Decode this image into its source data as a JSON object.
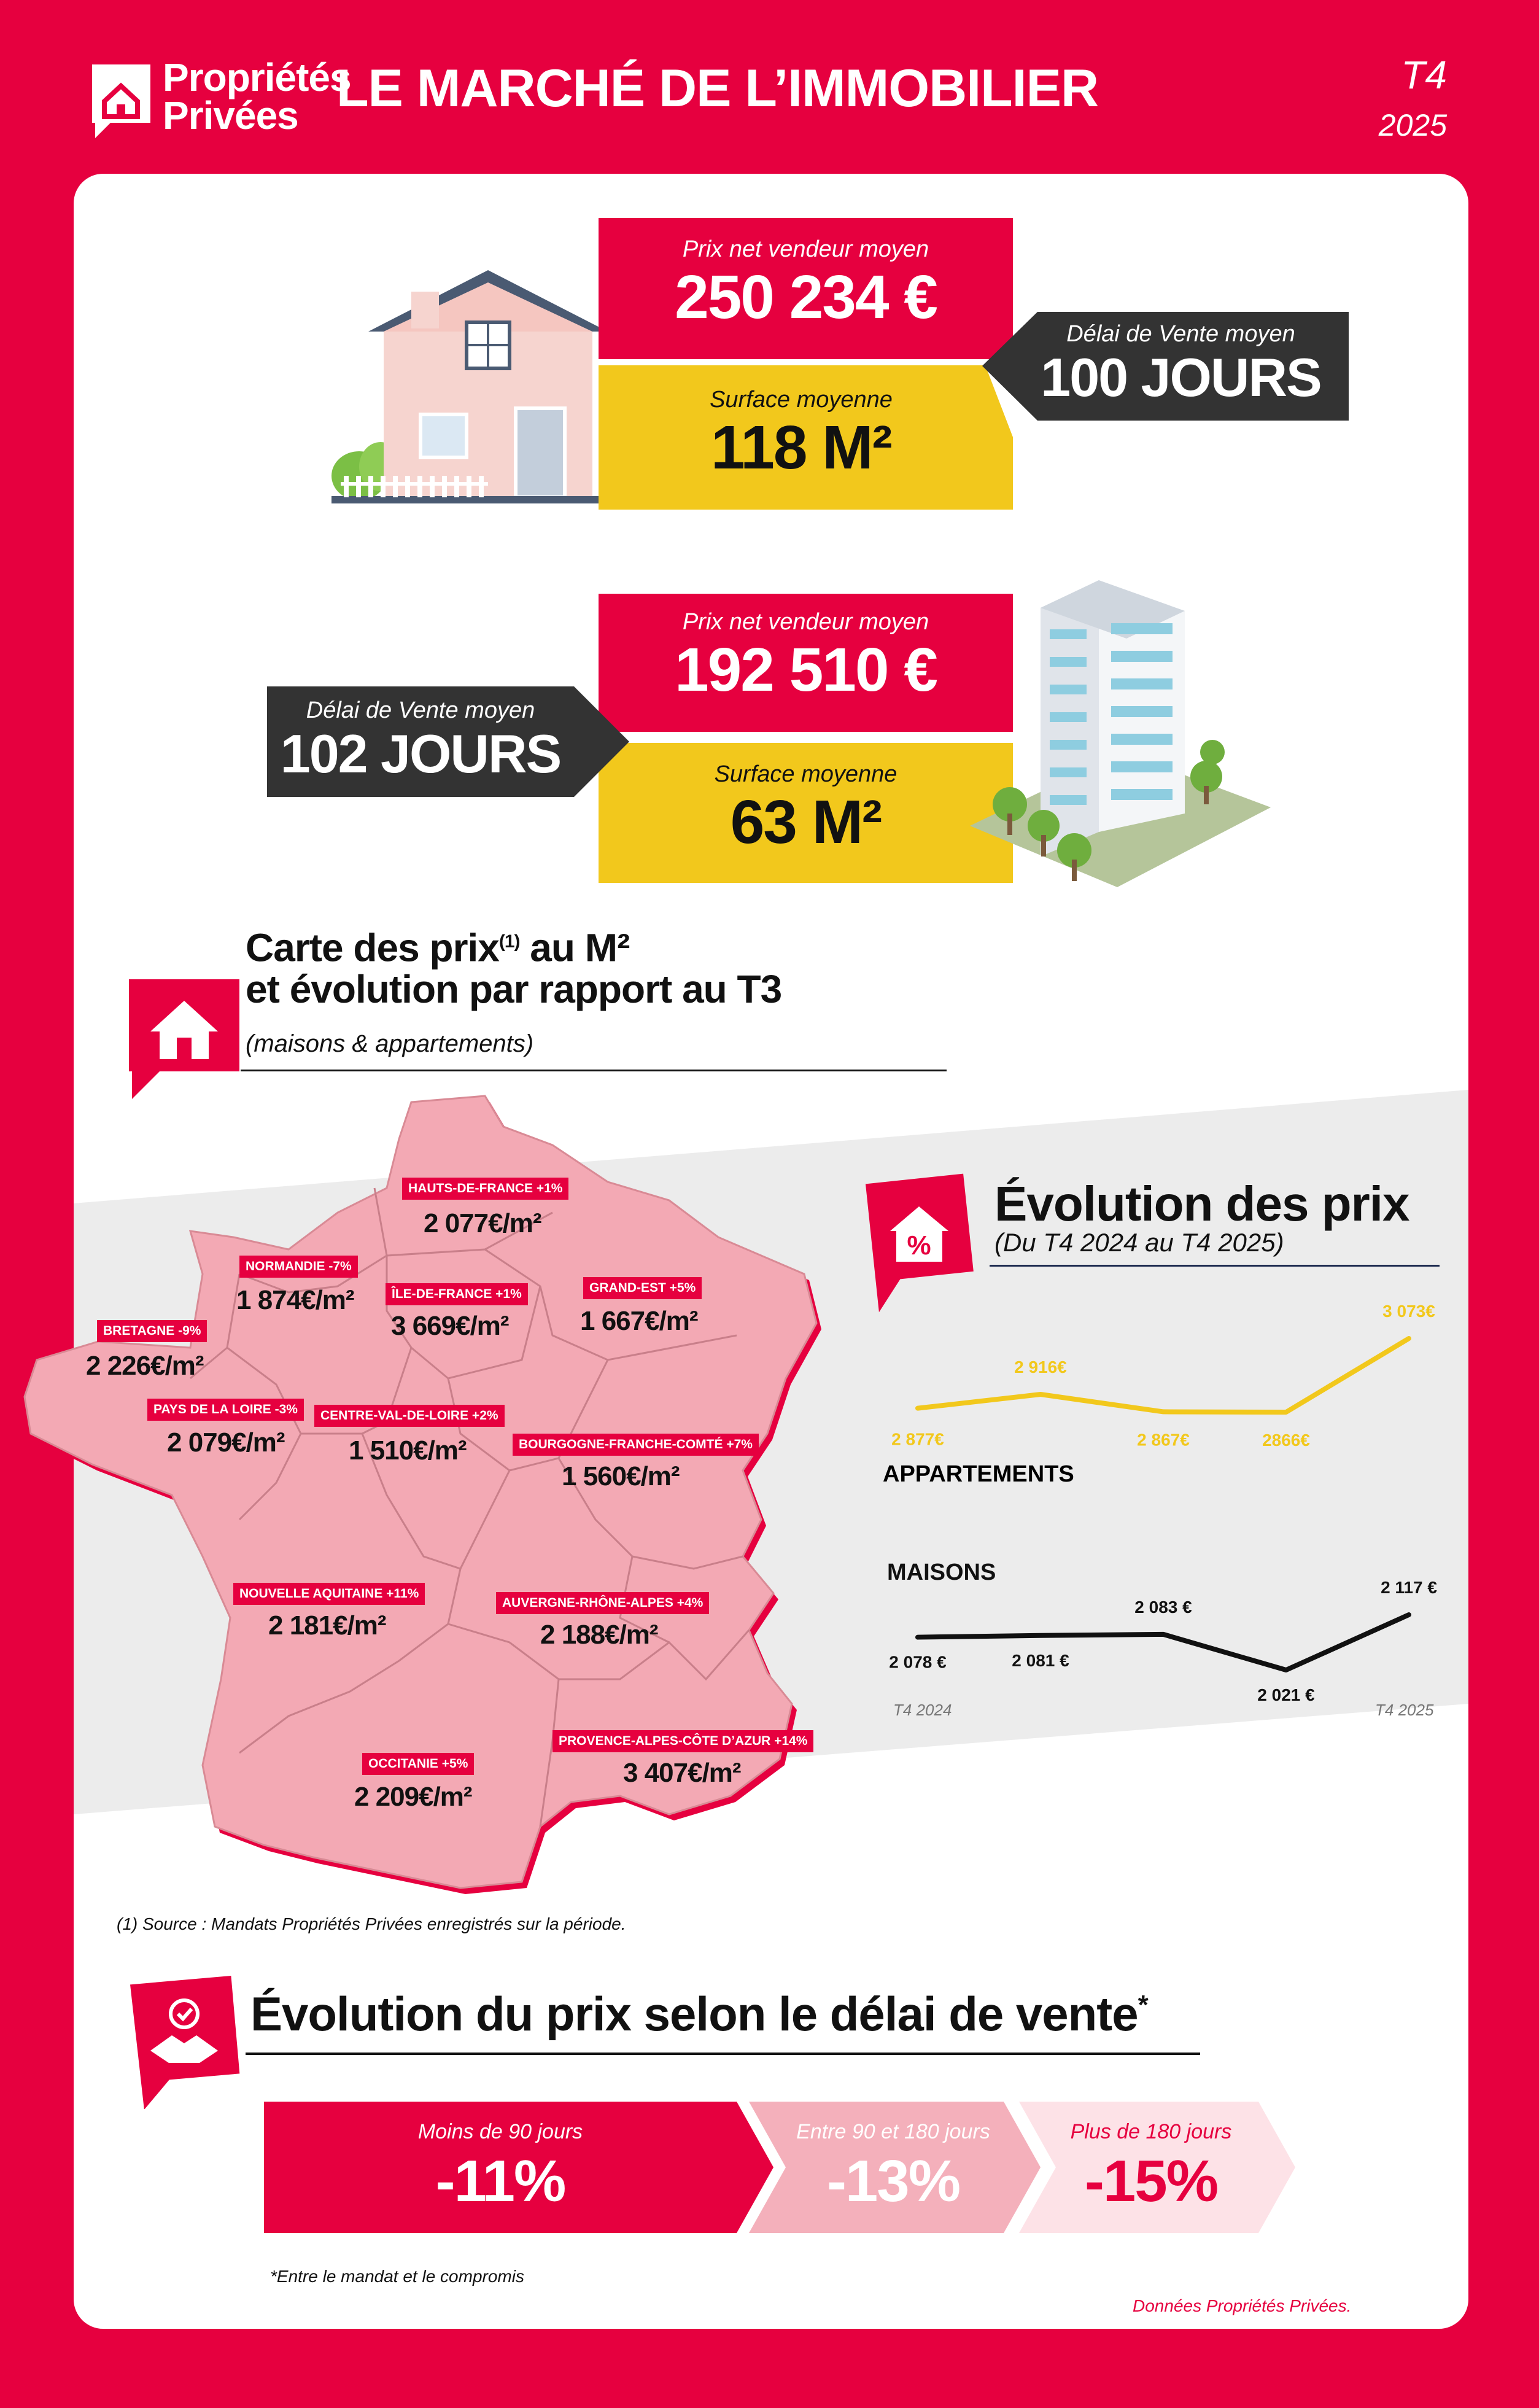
{
  "header": {
    "brand_line1": "Propriétés",
    "brand_line2": "Privées",
    "title": "LE MARCHÉ DE L’IMMOBILIER",
    "quarter": "T4",
    "year": "2025"
  },
  "house": {
    "price_label": "Prix net vendeur moyen",
    "price_value": "250 234 €",
    "surface_label": "Surface moyenne",
    "surface_value": "118 M²",
    "delay_label": "Délai de Vente moyen",
    "delay_value": "100 JOURS"
  },
  "apartment": {
    "price_label": "Prix net vendeur moyen",
    "price_value": "192 510 €",
    "surface_label": "Surface moyenne",
    "surface_value": "63 M²",
    "delay_label": "Délai de Vente moyen",
    "delay_value": "102 JOURS"
  },
  "map_section": {
    "title_line1": "Carte des prix",
    "title_sup": "(1)",
    "title_line1_end": " au M²",
    "title_line2": "et évolution par rapport au T3",
    "subtitle": "(maisons & appartements)",
    "regions": [
      {
        "tag": "HAUTS-DE-FRANCE +1%",
        "price": "2 077€/m²"
      },
      {
        "tag": "NORMANDIE -7%",
        "price": "1 874€/m²"
      },
      {
        "tag": "ÎLE-DE-FRANCE +1%",
        "price": "3 669€/m²"
      },
      {
        "tag": "GRAND-EST +5%",
        "price": "1 667€/m²"
      },
      {
        "tag": "BRETAGNE -9%",
        "price": "2 226€/m²"
      },
      {
        "tag": "PAYS DE LA LOIRE -3%",
        "price": "2 079€/m²"
      },
      {
        "tag": "CENTRE-VAL-DE-LOIRE +2%",
        "price": "1 510€/m²"
      },
      {
        "tag": "BOURGOGNE-FRANCHE-COMTÉ +7%",
        "price": "1 560€/m²"
      },
      {
        "tag": "NOUVELLE AQUITAINE +11%",
        "price": "2 181€/m²"
      },
      {
        "tag": "AUVERGNE-RHÔNE-ALPES +4%",
        "price": "2 188€/m²"
      },
      {
        "tag": "OCCITANIE +5%",
        "price": "2 209€/m²"
      },
      {
        "tag": "PROVENCE-ALPES-CÔTE D’AZUR +14%",
        "price": "3 407€/m²"
      }
    ],
    "footnote": "(1) Source : Mandats Propriétés Privées enregistrés sur la période."
  },
  "evolution": {
    "title": "Évolution des prix",
    "subtitle": "(Du T4 2024 au T4 2025)",
    "apartments_label": "APPARTEMENTS",
    "houses_label": "MAISONS",
    "x_start": "T4 2024",
    "x_end": "T4 2025",
    "apartment_color": "#f2c81c",
    "house_color": "#111111"
  },
  "chart_data": [
    {
      "type": "line",
      "series": [
        {
          "name": "APPARTEMENTS",
          "values": [
            2877,
            2916,
            2867,
            2866,
            3073
          ],
          "labels": [
            "2 877€",
            "2 916€",
            "2 867€",
            "2866€",
            "3 073€"
          ]
        }
      ],
      "x": [
        "T4 2024",
        "",
        "",
        "",
        "T4 2025"
      ]
    },
    {
      "type": "line",
      "series": [
        {
          "name": "MAISONS",
          "values": [
            2078,
            2081,
            2083,
            2021,
            2117
          ],
          "labels": [
            "2 078 €",
            "2 081 €",
            "2 083 €",
            "2 021 €",
            "2 117 €"
          ]
        }
      ],
      "x": [
        "T4 2024",
        "",
        "",
        "",
        "T4 2025"
      ]
    }
  ],
  "delay_section": {
    "title": "Évolution du prix selon le délai de vente",
    "title_mark": "*",
    "segments": [
      {
        "label": "Moins de 90 jours",
        "value": "-11%",
        "value_num": -11
      },
      {
        "label": "Entre 90 et 180 jours",
        "value": "-13%",
        "value_num": -13
      },
      {
        "label": "Plus de 180 jours",
        "value": "-15%",
        "value_num": -15
      }
    ],
    "footnote": "*Entre le mandat et le compromis",
    "source": "Données Propriétés Privées."
  }
}
